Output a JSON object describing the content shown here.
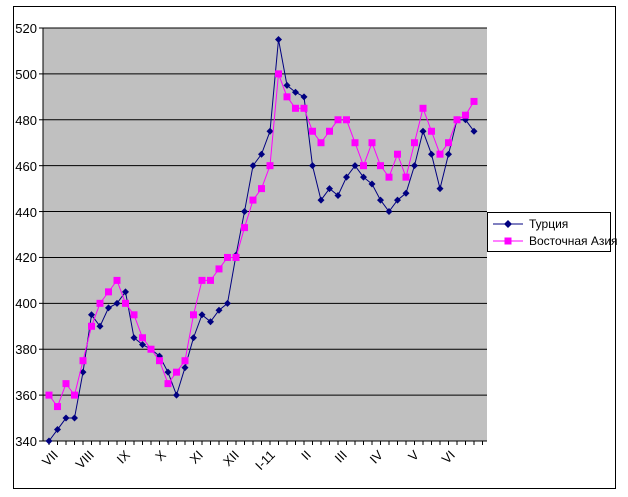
{
  "chart_data": {
    "type": "line",
    "title": "",
    "xlabel": "",
    "ylabel": "",
    "ylim": [
      340,
      520
    ],
    "y_tick_step": 20,
    "y_ticks": [
      340,
      360,
      380,
      400,
      420,
      440,
      460,
      480,
      500,
      520
    ],
    "grid": true,
    "plot_bg_color": "#c0c0c0",
    "gridline_color": "#000000",
    "legend_position": "right",
    "x_month_categories": [
      "VII",
      "VIII",
      "IX",
      "X",
      "XI",
      "XII",
      "I-11",
      "II",
      "III",
      "IV",
      "V",
      "VI"
    ],
    "points_per_month": 4.25,
    "series": [
      {
        "name": "Турция",
        "color": "#000080",
        "marker": "diamond",
        "values": [
          340,
          345,
          350,
          350,
          370,
          395,
          390,
          398,
          400,
          405,
          385,
          382,
          380,
          377,
          370,
          360,
          372,
          385,
          395,
          392,
          397,
          400,
          421,
          440,
          460,
          465,
          475,
          515,
          495,
          492,
          490,
          460,
          445,
          450,
          447,
          455,
          460,
          455,
          452,
          445,
          440,
          445,
          448,
          460,
          475,
          465,
          450,
          465,
          480,
          480,
          475
        ]
      },
      {
        "name": "Восточная Азия",
        "color": "#ff00ff",
        "marker": "square",
        "values": [
          360,
          355,
          365,
          360,
          375,
          390,
          400,
          405,
          410,
          400,
          395,
          385,
          380,
          375,
          365,
          370,
          375,
          395,
          410,
          410,
          415,
          420,
          420,
          433,
          445,
          450,
          460,
          500,
          490,
          485,
          485,
          475,
          470,
          475,
          480,
          480,
          470,
          460,
          470,
          460,
          455,
          465,
          455,
          470,
          485,
          475,
          465,
          470,
          480,
          482,
          488
        ]
      }
    ]
  }
}
